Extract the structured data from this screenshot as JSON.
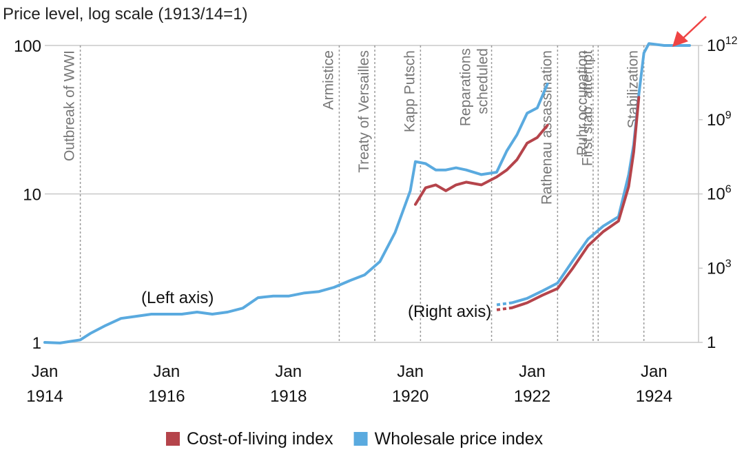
{
  "chart_data": {
    "type": "line",
    "title": "Price level, log scale (1913/14=1)",
    "scale": "log",
    "x_range": [
      "1914-01",
      "1924-08"
    ],
    "left_axis": {
      "ticks": [
        {
          "value": 1,
          "label": "1"
        },
        {
          "value": 10,
          "label": "10"
        },
        {
          "value": 100,
          "label": "100"
        }
      ]
    },
    "right_axis": {
      "ticks": [
        {
          "value": 1,
          "label": "1"
        },
        {
          "value": 1000,
          "label": "10^3"
        },
        {
          "value": 1000000,
          "label": "10^6"
        },
        {
          "value": 1000000000,
          "label": "10^9"
        },
        {
          "value": 1000000000000,
          "label": "10^12"
        }
      ]
    },
    "x_ticks": [
      {
        "date": "1914-01",
        "line1": "Jan",
        "line2": "1914"
      },
      {
        "date": "1916-01",
        "line1": "Jan",
        "line2": "1916"
      },
      {
        "date": "1918-01",
        "line1": "Jan",
        "line2": "1918"
      },
      {
        "date": "1920-01",
        "line1": "Jan",
        "line2": "1920"
      },
      {
        "date": "1922-01",
        "line1": "Jan",
        "line2": "1922"
      },
      {
        "date": "1924-01",
        "line1": "Jan",
        "line2": "1924"
      }
    ],
    "events": [
      {
        "date": "1914-08",
        "label": "Outbreak of WWI"
      },
      {
        "date": "1918-11",
        "label": "Armistice"
      },
      {
        "date": "1919-06",
        "label": "Treaty of Versailles"
      },
      {
        "date": "1920-03",
        "label": "Kapp Putsch"
      },
      {
        "date": "1921-05",
        "label": "Reparations\nscheduled"
      },
      {
        "date": "1922-06",
        "label": "Rathenau assassination"
      },
      {
        "date": "1923-01",
        "label": "Ruhr occupation"
      },
      {
        "date": "1923-02",
        "label": "First stab. attempt"
      },
      {
        "date": "1923-11",
        "label": "Stabilization"
      }
    ],
    "annotations": [
      "(Left axis)",
      "(Right axis)"
    ],
    "legend": {
      "position": "bottom",
      "items": [
        {
          "label": "Cost-of-living index",
          "color": "#b5444b"
        },
        {
          "label": "Wholesale price index",
          "color": "#5aaadf"
        }
      ]
    },
    "series": [
      {
        "name": "Wholesale price index",
        "axis": "left",
        "color": "#5aaadf",
        "x": [
          "1914-01",
          "1914-04",
          "1914-08",
          "1914-10",
          "1915-01",
          "1915-04",
          "1915-07",
          "1915-10",
          "1916-01",
          "1916-04",
          "1916-07",
          "1916-10",
          "1917-01",
          "1917-04",
          "1917-07",
          "1917-10",
          "1918-01",
          "1918-04",
          "1918-07",
          "1918-10",
          "1919-01",
          "1919-04",
          "1919-07",
          "1919-10",
          "1920-01",
          "1920-02",
          "1920-04",
          "1920-06",
          "1920-08",
          "1920-10",
          "1920-12",
          "1921-03",
          "1921-06",
          "1921-08",
          "1921-10",
          "1921-12",
          "1922-02",
          "1922-04"
        ],
        "y": [
          1.0,
          0.99,
          1.04,
          1.15,
          1.3,
          1.45,
          1.5,
          1.55,
          1.55,
          1.55,
          1.6,
          1.55,
          1.6,
          1.7,
          2.0,
          2.05,
          2.05,
          2.15,
          2.2,
          2.35,
          2.6,
          2.85,
          3.5,
          5.5,
          10.5,
          16.5,
          16.0,
          14.5,
          14.5,
          15.0,
          14.5,
          13.5,
          14.0,
          19.5,
          25.0,
          35.0,
          38.0,
          55.0
        ]
      },
      {
        "name": "Cost-of-living index",
        "axis": "left",
        "color": "#b5444b",
        "x": [
          "1920-02",
          "1920-04",
          "1920-06",
          "1920-08",
          "1920-10",
          "1920-12",
          "1921-03",
          "1921-06",
          "1921-08",
          "1921-10",
          "1921-12",
          "1922-02",
          "1922-04"
        ],
        "y": [
          8.5,
          11.0,
          11.5,
          10.5,
          11.5,
          12.0,
          11.5,
          13.0,
          14.5,
          17.0,
          22.0,
          24.0,
          29.0
        ]
      },
      {
        "name": "Wholesale price index",
        "axis": "right",
        "color": "#5aaadf",
        "x": [
          "1921-09",
          "1921-12",
          "1922-03",
          "1922-06",
          "1922-09",
          "1922-12",
          "1923-03",
          "1923-06",
          "1923-08",
          "1923-09",
          "1923-10",
          "1923-11",
          "1923-12",
          "1924-03",
          "1924-08"
        ],
        "y": [
          40,
          60,
          120,
          250,
          2000,
          15000,
          50000,
          120000,
          6000000,
          100000000,
          10000000000,
          500000000000,
          1200000000000,
          1000000000000,
          1000000000000
        ]
      },
      {
        "name": "Cost-of-living index",
        "axis": "right",
        "color": "#b5444b",
        "x": [
          "1921-09",
          "1921-12",
          "1922-03",
          "1922-06",
          "1922-09",
          "1922-12",
          "1923-03",
          "1923-06",
          "1923-08",
          "1923-09",
          "1923-10"
        ],
        "y": [
          25,
          40,
          80,
          150,
          1000,
          8000,
          30000,
          80000,
          2000000,
          50000000,
          8000000000
        ]
      }
    ]
  }
}
